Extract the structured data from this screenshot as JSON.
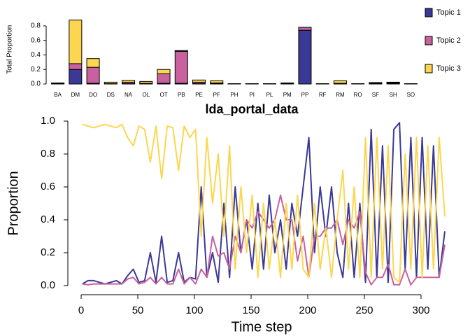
{
  "chart_data": [
    {
      "type": "bar",
      "stacked": true,
      "legend": "right",
      "ylabel": "Total Proportion",
      "categories": [
        "BA",
        "DM",
        "DO",
        "DS",
        "NA",
        "OL",
        "OT",
        "PB",
        "PE",
        "PF",
        "PH",
        "PI",
        "PL",
        "PM",
        "PP",
        "RF",
        "RM",
        "RO",
        "SF",
        "SH",
        "SO"
      ],
      "series": [
        {
          "name": "Topic 1",
          "color": "#3b3996",
          "values": [
            0.005,
            0.2,
            0.01,
            0,
            0.005,
            0.005,
            0.01,
            0.01,
            0.005,
            0.005,
            0,
            0,
            0,
            0.01,
            0.74,
            0,
            0.005,
            0,
            0.01,
            0.01,
            0
          ]
        },
        {
          "name": "Topic 2",
          "color": "#c8619d",
          "values": [
            0.005,
            0.08,
            0.22,
            0.005,
            0.02,
            0.005,
            0.13,
            0.44,
            0.02,
            0.01,
            0.005,
            0.005,
            0.005,
            0.005,
            0.04,
            0.005,
            0.005,
            0.005,
            0.01,
            0.01,
            0.005
          ]
        },
        {
          "name": "Topic 3",
          "color": "#fdd64f",
          "values": [
            0.005,
            0.6,
            0.12,
            0.02,
            0.025,
            0.025,
            0.06,
            0.01,
            0.03,
            0.03,
            0,
            0,
            0,
            0,
            0,
            0,
            0.035,
            0,
            0,
            0.005,
            0
          ]
        }
      ],
      "ylim": [
        0,
        0.95
      ],
      "yticks": [
        {
          "value": 0,
          "label": "0.0"
        },
        0.2,
        0.4,
        0.6,
        0.8
      ]
    },
    {
      "type": "line",
      "title": "lda_portal_data",
      "xlabel": "Time step",
      "ylabel": "Proportion",
      "x": [
        1,
        6,
        11,
        16,
        21,
        26,
        31,
        36,
        41,
        46,
        51,
        56,
        61,
        66,
        71,
        76,
        81,
        86,
        91,
        96,
        101,
        106,
        111,
        116,
        121,
        126,
        131,
        136,
        141,
        146,
        151,
        156,
        161,
        166,
        171,
        176,
        181,
        186,
        191,
        196,
        201,
        206,
        211,
        216,
        221,
        226,
        231,
        236,
        241,
        246,
        251,
        256,
        261,
        266,
        271,
        276,
        281,
        286,
        291,
        296,
        301,
        306,
        311,
        316,
        321
      ],
      "series": [
        {
          "name": "Topic 1",
          "color": "#3b3996",
          "values": [
            0.01,
            0.03,
            0.03,
            0.02,
            0.01,
            0.02,
            0.03,
            0.01,
            0.06,
            0.1,
            0.02,
            0.03,
            0.2,
            0.02,
            0.3,
            0.02,
            0.03,
            0.2,
            0.02,
            0.05,
            0.04,
            0.6,
            0.05,
            0.2,
            0.02,
            0.5,
            0.05,
            0.6,
            0.2,
            0.4,
            0.1,
            0.5,
            0.1,
            0.55,
            0.2,
            0.4,
            0.1,
            0.5,
            0.3,
            0.6,
            0.9,
            0.2,
            0.6,
            0.3,
            0.6,
            0.2,
            0.05,
            0.5,
            0.05,
            0.5,
            0.02,
            0.95,
            0.05,
            0.85,
            0.02,
            0.95,
            0.99,
            0.1,
            0.9,
            0.05,
            0.9,
            0.1,
            0.85,
            0.05,
            0.33
          ]
        },
        {
          "name": "Topic 2",
          "color": "#c8619d",
          "values": [
            0.01,
            0.005,
            0.01,
            0.01,
            0.01,
            0.01,
            0.01,
            0.01,
            0.04,
            0.05,
            0.01,
            0.02,
            0.05,
            0.01,
            0.05,
            0.01,
            0.01,
            0.1,
            0.01,
            0.05,
            0.01,
            0.1,
            0.05,
            0.3,
            0.18,
            0.2,
            0.1,
            0.3,
            0.2,
            0.4,
            0.35,
            0.45,
            0.4,
            0.35,
            0.4,
            0.55,
            0.4,
            0.4,
            0.15,
            0.3,
            0.05,
            0.3,
            0.3,
            0.35,
            0.35,
            0.4,
            0.25,
            0.4,
            0.35,
            0.45,
            0.08,
            0.005,
            0.05,
            0.05,
            0.13,
            0.005,
            0.005,
            0.1,
            0.005,
            0.05,
            0.05,
            0.05,
            0.05,
            0.05,
            0.25
          ]
        },
        {
          "name": "Topic 3",
          "color": "#fdd64f",
          "values": [
            0.98,
            0.97,
            0.96,
            0.97,
            0.98,
            0.97,
            0.96,
            0.98,
            0.9,
            0.85,
            0.97,
            0.95,
            0.75,
            0.97,
            0.65,
            0.97,
            0.96,
            0.7,
            0.97,
            0.9,
            0.95,
            0.3,
            0.9,
            0.5,
            0.8,
            0.3,
            0.85,
            0.1,
            0.6,
            0.2,
            0.55,
            0.05,
            0.5,
            0.1,
            0.4,
            0.05,
            0.5,
            0.1,
            0.55,
            0.1,
            0.05,
            0.5,
            0.1,
            0.35,
            0.05,
            0.4,
            0.7,
            0.1,
            0.6,
            0.05,
            0.9,
            0.05,
            0.9,
            0.1,
            0.85,
            0.05,
            0.02,
            0.8,
            0.1,
            0.9,
            0.05,
            0.85,
            0.1,
            0.9,
            0.42
          ]
        }
      ],
      "xlim": [
        -12,
        330
      ],
      "xticks": [
        0,
        50,
        100,
        150,
        200,
        250,
        300
      ],
      "ylim": [
        -0.04,
        1.04
      ],
      "yticks": [
        {
          "value": 0,
          "label": "0.0"
        },
        0.2,
        0.4,
        0.6,
        0.8,
        {
          "value": 1,
          "label": "1.0"
        }
      ]
    }
  ]
}
